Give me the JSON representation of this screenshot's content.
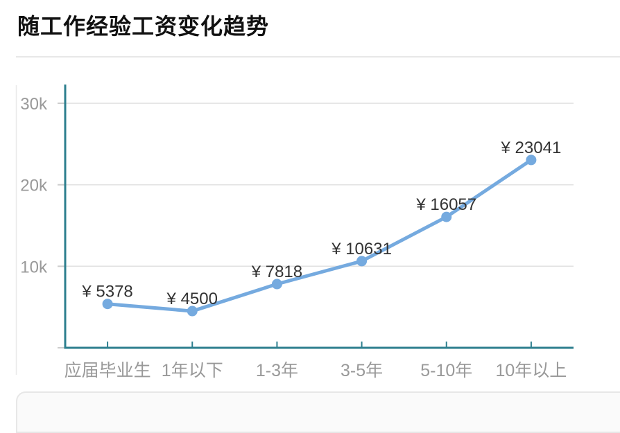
{
  "page": {
    "title": "随工作经验工资变化趋势"
  },
  "chart_data": {
    "type": "line",
    "title": "随工作经验工资变化趋势",
    "xlabel": "",
    "ylabel": "",
    "categories": [
      "应届毕业生",
      "1年以下",
      "1-3年",
      "3-5年",
      "5-10年",
      "10年以上"
    ],
    "values": [
      5378,
      4500,
      7818,
      10631,
      16057,
      23041
    ],
    "labels": [
      "¥ 5378",
      "¥ 4500",
      "¥ 7818",
      "¥ 10631",
      "¥ 16057",
      "¥ 23041"
    ],
    "y_ticks": [
      "10k",
      "20k",
      "30k"
    ],
    "y_tick_values": [
      10000,
      20000,
      30000
    ],
    "ylim": [
      0,
      32300
    ],
    "grid": true,
    "legend_position": "none",
    "colors": {
      "line": "#75AADF",
      "point": "#75AADF",
      "axis": "#2D7F8E",
      "gridline": "#E2E2E2",
      "tick_gray": "#CCCCCC",
      "axis_label": "#999999",
      "data_label": "#333333",
      "card_border": "#E9E9E9"
    }
  }
}
